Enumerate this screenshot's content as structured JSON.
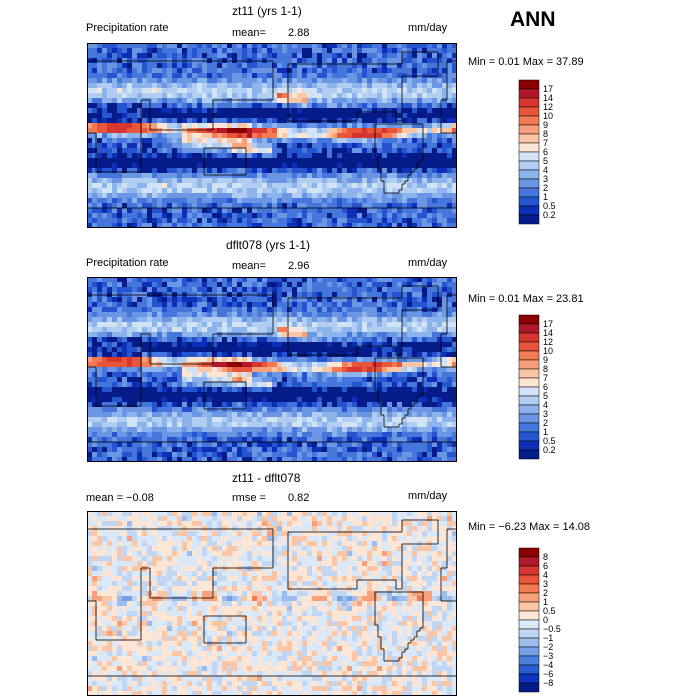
{
  "header": {
    "season": "ANN"
  },
  "panels": [
    {
      "title": "zt11 (yrs 1-1)",
      "left_label": "Precipitation rate",
      "stat_label": "mean=",
      "stat_value": "2.88",
      "units": "mm/day",
      "range_text": "Min =    0.01 Max =   37.89",
      "colorbar_levels": [
        "17",
        "14",
        "12",
        "10",
        "9",
        "8",
        "7",
        "6",
        "5",
        "4",
        "3",
        "2",
        "1",
        "0.5",
        "0.2"
      ]
    },
    {
      "title": "dflt078 (yrs 1-1)",
      "left_label": "Precipitation rate",
      "stat_label": "mean=",
      "stat_value": "2.96",
      "units": "mm/day",
      "range_text": "Min =    0.01 Max =   23.81",
      "colorbar_levels": [
        "17",
        "14",
        "12",
        "10",
        "9",
        "8",
        "7",
        "6",
        "5",
        "4",
        "3",
        "2",
        "1",
        "0.5",
        "0.2"
      ]
    },
    {
      "title": "zt11 - dflt078",
      "left_label": "mean =   −0.08",
      "stat_label": "rmse =",
      "stat_value": "0.82",
      "units": "mm/day",
      "range_text": "Min =   −6.23 Max =   14.08",
      "colorbar_levels": [
        "8",
        "6",
        "4",
        "3",
        "2",
        "1",
        "0.5",
        "0",
        "−0.5",
        "−1",
        "−2",
        "−3",
        "−4",
        "−6",
        "−8"
      ]
    }
  ],
  "colors": {
    "precip": [
      "#8b0000",
      "#b2182b",
      "#d6362f",
      "#e8553b",
      "#f47a54",
      "#f8a07c",
      "#fbc6a6",
      "#fde6d5",
      "#d3e3f6",
      "#b1cdf1",
      "#8db3ec",
      "#6a96e4",
      "#4576dc",
      "#2454cf",
      "#0d2fb8",
      "#051b8a"
    ],
    "diff": [
      "#8b0000",
      "#b2182b",
      "#d6362f",
      "#e8553b",
      "#f47a54",
      "#f8a07c",
      "#fbc6a6",
      "#fde6d5",
      "#dbe8f7",
      "#c0d6f3",
      "#9cbcee",
      "#76a0e6",
      "#4f7fdd",
      "#2a5bd1",
      "#0c33bd",
      "#051b8a"
    ],
    "land_line": "#000000"
  },
  "chart_data": [
    {
      "type": "heatmap",
      "title": "zt11 (yrs 1-1)",
      "subtitle": "Precipitation rate",
      "units": "mm/day",
      "mean": 2.88,
      "min": 0.01,
      "max": 37.89,
      "contour_levels": [
        0.2,
        0.5,
        1,
        2,
        3,
        4,
        5,
        6,
        7,
        8,
        9,
        10,
        12,
        14,
        17
      ]
    },
    {
      "type": "heatmap",
      "title": "dflt078 (yrs 1-1)",
      "subtitle": "Precipitation rate",
      "units": "mm/day",
      "mean": 2.96,
      "min": 0.01,
      "max": 23.81,
      "contour_levels": [
        0.2,
        0.5,
        1,
        2,
        3,
        4,
        5,
        6,
        7,
        8,
        9,
        10,
        12,
        14,
        17
      ]
    },
    {
      "type": "heatmap",
      "title": "zt11 - dflt078",
      "units": "mm/day",
      "mean": -0.08,
      "rmse": 0.82,
      "min": -6.23,
      "max": 14.08,
      "contour_levels": [
        -8,
        -6,
        -4,
        -3,
        -2,
        -1,
        -0.5,
        0,
        0.5,
        1,
        2,
        3,
        4,
        6,
        8
      ]
    }
  ]
}
